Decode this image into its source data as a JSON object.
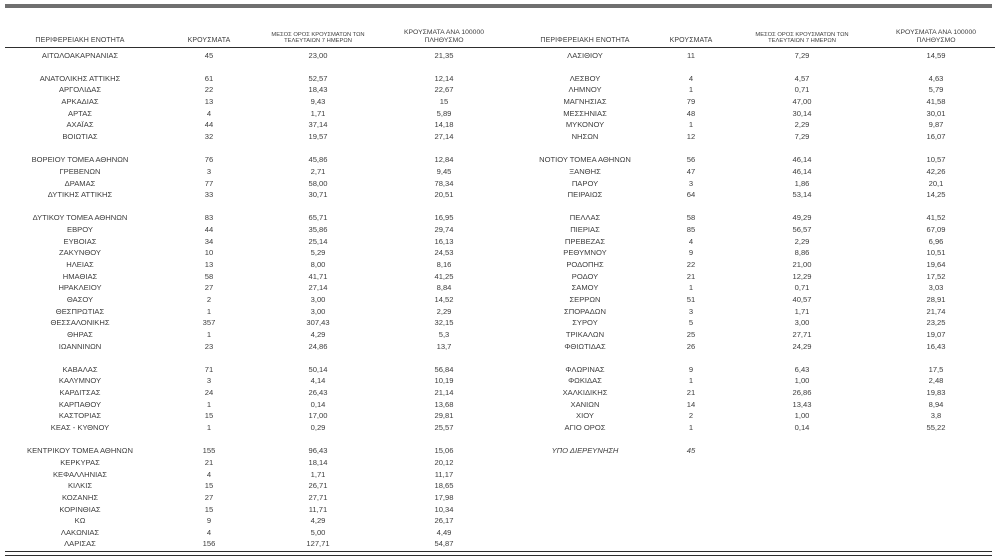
{
  "table": {
    "headers": {
      "region": "ΠΕΡΙΦΕΡΕΙΑΚΗ ΕΝΟΤΗΤΑ",
      "cases": "ΚΡΟΥΣΜΑΤΑ",
      "avg7_line1": "ΜΕΣΟΣ ΟΡΟΣ ΚΡΟΥΣΜΑΤΩΝ ΤΩΝ",
      "avg7_line2": "ΤΕΛΕΥΤΑΙΩΝ 7 ΗΜΕΡΩΝ",
      "per100k_line1": "ΚΡΟΥΣΜΑΤΑ ΑΝΑ 100000",
      "per100k_line2": "ΠΛΗΘΥΣΜΟ"
    },
    "rows": [
      {
        "left": [
          "ΑΙΤΩΛΟΑΚΑΡΝΑΝΙΑΣ",
          "45",
          "23,00",
          "21,35"
        ],
        "right": [
          "ΛΑΣΙΘΙΟΥ",
          "11",
          "7,29",
          "14,59"
        ]
      },
      {
        "spacer": true
      },
      {
        "left": [
          "ΑΝΑΤΟΛΙΚΗΣ ΑΤΤΙΚΗΣ",
          "61",
          "52,57",
          "12,14"
        ],
        "right": [
          "ΛΕΣΒΟΥ",
          "4",
          "4,57",
          "4,63"
        ]
      },
      {
        "left": [
          "ΑΡΓΟΛΙΔΑΣ",
          "22",
          "18,43",
          "22,67"
        ],
        "right": [
          "ΛΗΜΝΟΥ",
          "1",
          "0,71",
          "5,79"
        ]
      },
      {
        "left": [
          "ΑΡΚΑΔΙΑΣ",
          "13",
          "9,43",
          "15"
        ],
        "right": [
          "ΜΑΓΝΗΣΙΑΣ",
          "79",
          "47,00",
          "41,58"
        ]
      },
      {
        "left": [
          "ΑΡΤΑΣ",
          "4",
          "1,71",
          "5,89"
        ],
        "right": [
          "ΜΕΣΣΗΝΙΑΣ",
          "48",
          "30,14",
          "30,01"
        ]
      },
      {
        "left": [
          "ΑΧΑΪΑΣ",
          "44",
          "37,14",
          "14,18"
        ],
        "right": [
          "ΜΥΚΟΝΟΥ",
          "1",
          "2,29",
          "9,87"
        ]
      },
      {
        "left": [
          "ΒΟΙΩΤΙΑΣ",
          "32",
          "19,57",
          "27,14"
        ],
        "right": [
          "ΝΗΣΩΝ",
          "12",
          "7,29",
          "16,07"
        ]
      },
      {
        "spacer": true
      },
      {
        "left": [
          "ΒΟΡΕΙΟΥ ΤΟΜΕΑ ΑΘΗΝΩΝ",
          "76",
          "45,86",
          "12,84"
        ],
        "right": [
          "ΝΟΤΙΟΥ ΤΟΜΕΑ ΑΘΗΝΩΝ",
          "56",
          "46,14",
          "10,57"
        ]
      },
      {
        "left": [
          "ΓΡΕΒΕΝΩΝ",
          "3",
          "2,71",
          "9,45"
        ],
        "right": [
          "ΞΑΝΘΗΣ",
          "47",
          "46,14",
          "42,26"
        ]
      },
      {
        "left": [
          "ΔΡΑΜΑΣ",
          "77",
          "58,00",
          "78,34"
        ],
        "right": [
          "ΠΑΡΟΥ",
          "3",
          "1,86",
          "20,1"
        ]
      },
      {
        "left": [
          "ΔΥΤΙΚΗΣ ΑΤΤΙΚΗΣ",
          "33",
          "30,71",
          "20,51"
        ],
        "right": [
          "ΠΕΙΡΑΙΩΣ",
          "64",
          "53,14",
          "14,25"
        ]
      },
      {
        "spacer": true
      },
      {
        "left": [
          "ΔΥΤΙΚΟΥ ΤΟΜΕΑ ΑΘΗΝΩΝ",
          "83",
          "65,71",
          "16,95"
        ],
        "right": [
          "ΠΕΛΛΑΣ",
          "58",
          "49,29",
          "41,52"
        ]
      },
      {
        "left": [
          "ΕΒΡΟΥ",
          "44",
          "35,86",
          "29,74"
        ],
        "right": [
          "ΠΙΕΡΙΑΣ",
          "85",
          "56,57",
          "67,09"
        ]
      },
      {
        "left": [
          "ΕΥΒΟΙΑΣ",
          "34",
          "25,14",
          "16,13"
        ],
        "right": [
          "ΠΡΕΒΕΖΑΣ",
          "4",
          "2,29",
          "6,96"
        ]
      },
      {
        "left": [
          "ΖΑΚΥΝΘΟΥ",
          "10",
          "5,29",
          "24,53"
        ],
        "right": [
          "ΡΕΘΥΜΝΟΥ",
          "9",
          "8,86",
          "10,51"
        ]
      },
      {
        "left": [
          "ΗΛΕΙΑΣ",
          "13",
          "8,00",
          "8,16"
        ],
        "right": [
          "ΡΟΔΟΠΗΣ",
          "22",
          "21,00",
          "19,64"
        ]
      },
      {
        "left": [
          "ΗΜΑΘΙΑΣ",
          "58",
          "41,71",
          "41,25"
        ],
        "right": [
          "ΡΟΔΟΥ",
          "21",
          "12,29",
          "17,52"
        ]
      },
      {
        "left": [
          "ΗΡΑΚΛΕΙΟΥ",
          "27",
          "27,14",
          "8,84"
        ],
        "right": [
          "ΣΑΜΟΥ",
          "1",
          "0,71",
          "3,03"
        ]
      },
      {
        "left": [
          "ΘΑΣΟΥ",
          "2",
          "3,00",
          "14,52"
        ],
        "right": [
          "ΣΕΡΡΩΝ",
          "51",
          "40,57",
          "28,91"
        ]
      },
      {
        "left": [
          "ΘΕΣΠΡΩΤΙΑΣ",
          "1",
          "3,00",
          "2,29"
        ],
        "right": [
          "ΣΠΟΡΑΔΩΝ",
          "3",
          "1,71",
          "21,74"
        ]
      },
      {
        "left": [
          "ΘΕΣΣΑΛΟΝΙΚΗΣ",
          "357",
          "307,43",
          "32,15"
        ],
        "right": [
          "ΣΥΡΟΥ",
          "5",
          "3,00",
          "23,25"
        ]
      },
      {
        "left": [
          "ΘΗΡΑΣ",
          "1",
          "4,29",
          "5,3"
        ],
        "right": [
          "ΤΡΙΚΑΛΩΝ",
          "25",
          "27,71",
          "19,07"
        ]
      },
      {
        "left": [
          "ΙΩΑΝΝΙΝΩΝ",
          "23",
          "24,86",
          "13,7"
        ],
        "right": [
          "ΦΘΙΩΤΙΔΑΣ",
          "26",
          "24,29",
          "16,43"
        ]
      },
      {
        "spacer": true
      },
      {
        "left": [
          "ΚΑΒΑΛΑΣ",
          "71",
          "50,14",
          "56,84"
        ],
        "right": [
          "ΦΛΩΡΙΝΑΣ",
          "9",
          "6,43",
          "17,5"
        ]
      },
      {
        "left": [
          "ΚΑΛΥΜΝΟΥ",
          "3",
          "4,14",
          "10,19"
        ],
        "right": [
          "ΦΩΚΙΔΑΣ",
          "1",
          "1,00",
          "2,48"
        ]
      },
      {
        "left": [
          "ΚΑΡΔΙΤΣΑΣ",
          "24",
          "26,43",
          "21,14"
        ],
        "right": [
          "ΧΑΛΚΙΔΙΚΗΣ",
          "21",
          "26,86",
          "19,83"
        ]
      },
      {
        "left": [
          "ΚΑΡΠΑΘΟΥ",
          "1",
          "0,14",
          "13,68"
        ],
        "right": [
          "ΧΑΝΙΩΝ",
          "14",
          "13,43",
          "8,94"
        ]
      },
      {
        "left": [
          "ΚΑΣΤΟΡΙΑΣ",
          "15",
          "17,00",
          "29,81"
        ],
        "right": [
          "ΧΙΟΥ",
          "2",
          "1,00",
          "3,8"
        ]
      },
      {
        "left": [
          "ΚΕΑΣ - ΚΥΘΝΟΥ",
          "1",
          "0,29",
          "25,57"
        ],
        "right": [
          "ΑΓΙΟ ΟΡΟΣ",
          "1",
          "0,14",
          "55,22"
        ]
      },
      {
        "spacer": true
      },
      {
        "left": [
          "ΚΕΝΤΡΙΚΟΥ ΤΟΜΕΑ ΑΘΗΝΩΝ",
          "155",
          "96,43",
          "15,06"
        ],
        "right": [
          "ΥΠΟ ΔΙΕΡΕΥΝΗΣΗ",
          "45",
          "",
          ""
        ],
        "right_italic": true
      },
      {
        "left": [
          "ΚΕΡΚΥΡΑΣ",
          "21",
          "18,14",
          "20,12"
        ],
        "right": [
          "",
          "",
          "",
          ""
        ]
      },
      {
        "left": [
          "ΚΕΦΑΛΛΗΝΙΑΣ",
          "4",
          "1,71",
          "11,17"
        ],
        "right": [
          "",
          "",
          "",
          ""
        ]
      },
      {
        "left": [
          "ΚΙΛΚΙΣ",
          "15",
          "26,71",
          "18,65"
        ],
        "right": [
          "",
          "",
          "",
          ""
        ]
      },
      {
        "left": [
          "ΚΟΖΑΝΗΣ",
          "27",
          "27,71",
          "17,98"
        ],
        "right": [
          "",
          "",
          "",
          ""
        ]
      },
      {
        "left": [
          "ΚΟΡΙΝΘΙΑΣ",
          "15",
          "11,71",
          "10,34"
        ],
        "right": [
          "",
          "",
          "",
          ""
        ]
      },
      {
        "left": [
          "ΚΩ",
          "9",
          "4,29",
          "26,17"
        ],
        "right": [
          "",
          "",
          "",
          ""
        ]
      },
      {
        "left": [
          "ΛΑΚΩΝΙΑΣ",
          "4",
          "5,00",
          "4,49"
        ],
        "right": [
          "",
          "",
          "",
          ""
        ]
      },
      {
        "left": [
          "ΛΑΡΙΣΑΣ",
          "156",
          "127,71",
          "54,87"
        ],
        "right": [
          "",
          "",
          "",
          ""
        ]
      }
    ]
  },
  "colors": {
    "text": "#3d3d3d",
    "rule": "#2e2e2e",
    "top_bar": "#6f6f6f"
  }
}
